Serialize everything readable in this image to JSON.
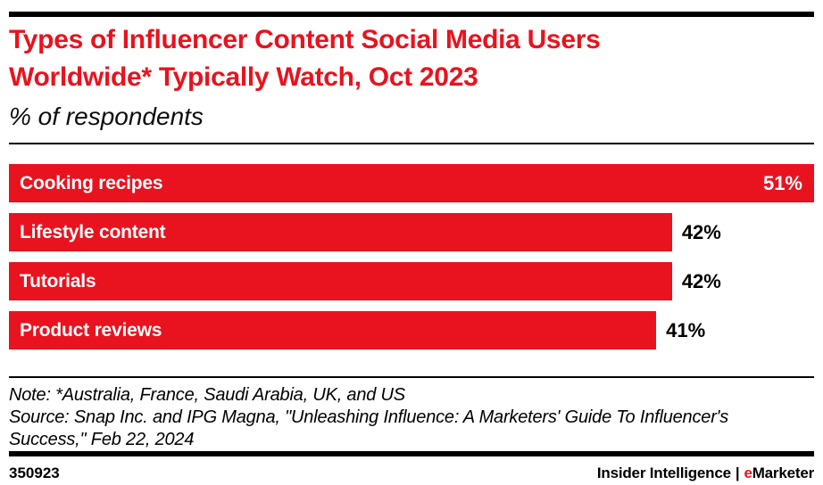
{
  "colors": {
    "accent_red": "#E8131E",
    "text_black": "#000000"
  },
  "header": {
    "title_line1": "Types of Influencer Content Social Media Users",
    "title_line2": "Worldwide* Typically Watch, Oct 2023",
    "subtitle": "% of respondents"
  },
  "chart_data": {
    "type": "bar",
    "orientation": "horizontal",
    "title": "Types of Influencer Content Social Media Users Worldwide* Typically Watch, Oct 2023",
    "subtitle": "% of respondents",
    "categories": [
      "Cooking recipes",
      "Lifestyle content",
      "Tutorials",
      "Product reviews"
    ],
    "values": [
      51,
      42,
      42,
      41
    ],
    "value_labels": [
      "51%",
      "42%",
      "42%",
      "41%"
    ],
    "value_position": [
      "inside",
      "outside",
      "outside",
      "outside"
    ],
    "unit": "%",
    "xlim": [
      0,
      51
    ],
    "grid": false,
    "legend": false,
    "bar_color": "#E8131E"
  },
  "notes": {
    "line1": "Note: *Australia, France, Saudi Arabia, UK, and US",
    "line2": "Source: Snap Inc. and IPG Magna, \"Unleashing Influence: A Marketers' Guide To Influencer's",
    "line3": "Success,\" Feb 22, 2024"
  },
  "footer": {
    "chart_id": "350923",
    "brand_left": "Insider Intelligence",
    "separator": "|",
    "brand_e": "e",
    "brand_rest": "Marketer"
  }
}
